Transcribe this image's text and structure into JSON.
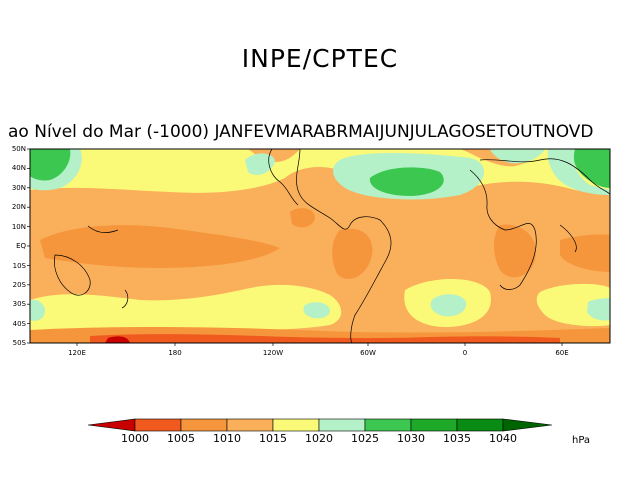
{
  "header": {
    "title": "INPE/CPTEC",
    "subtitle": "ao Nível do Mar (-1000) JANFEVMARABRMAIJUNJULAGOSETOUTNOVD"
  },
  "map": {
    "lat_labels": [
      "50N",
      "40N",
      "30N",
      "20N",
      "10N",
      "EQ",
      "10S",
      "20S",
      "30S",
      "40S",
      "50S"
    ],
    "lon_labels": [
      "120E",
      "180",
      "120W",
      "60W",
      "0",
      "60E"
    ]
  },
  "colorbar": {
    "ticks": [
      "1000",
      "1005",
      "1010",
      "1015",
      "1020",
      "1025",
      "1030",
      "1035",
      "1040"
    ],
    "unit": "hPa",
    "colors": [
      "#c80000",
      "#f05a1e",
      "#f5963c",
      "#faaf5a",
      "#fafa78",
      "#b4f0c8",
      "#3cc850",
      "#1eaa28",
      "#0a8c14",
      "#006400"
    ]
  }
}
